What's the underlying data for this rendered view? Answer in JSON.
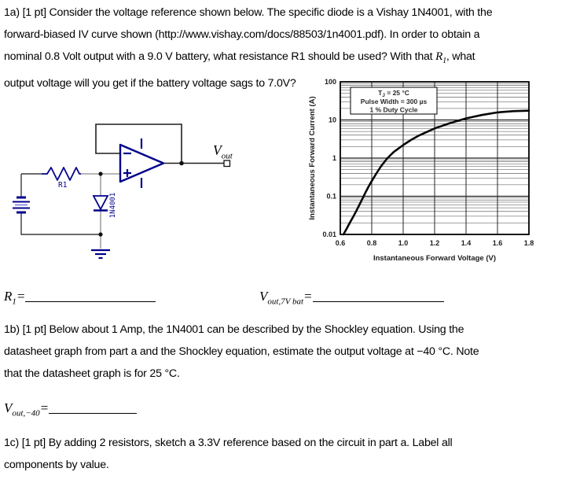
{
  "q1a": {
    "line1": "1a) [1 pt] Consider the voltage reference shown below. The specific diode is a Vishay 1N4001, with the",
    "line2": "forward-biased IV curve shown (http://www.vishay.com/docs/88503/1n4001.pdf). In order to obtain a",
    "line3_pre": "nominal 0.8 Volt output with a 9.0 V battery, what resistance R1 should be used? With that ",
    "line3_var": "R",
    "line3_sub": "1",
    "line3_post": ", what",
    "line4": "output voltage will you get if the battery voltage sags to 7.0V?"
  },
  "circuit": {
    "r1_label": "R1",
    "diode_label": "1N4001",
    "vout_var": "V",
    "vout_sub": "out",
    "component_color": "#00008b",
    "wire_color": "#8a8a8a",
    "dark_wire_color": "#1f1f1f"
  },
  "chart_data": {
    "type": "line",
    "title": "",
    "xlabel": "Instantaneous Forward Voltage (V)",
    "ylabel": "Instantaneous Forward Current (A)",
    "xlim": [
      0.6,
      1.8
    ],
    "xticks": [
      0.6,
      0.8,
      1.0,
      1.2,
      1.4,
      1.6,
      1.8
    ],
    "xtick_labels": [
      "0.6",
      "0.8",
      "1.0",
      "1.2",
      "1.4",
      "1.6",
      "1.8"
    ],
    "yscale": "log",
    "ylim": [
      0.01,
      100
    ],
    "ytick_values": [
      0.01,
      0.1,
      1,
      10,
      100
    ],
    "ytick_labels": [
      "0.01",
      "0.1",
      "1",
      "10",
      "100"
    ],
    "grid": true,
    "legend_position": "top-left-inside",
    "legend": {
      "line1_pre": "T",
      "line1_sub": "J",
      "line1_post": " = 25 °C",
      "line2": "Pulse Width = 300 µs",
      "line3": "1 % Duty Cycle"
    },
    "series": [
      {
        "name": "1N4001 instantaneous forward IV curve, 25 °C",
        "x": [
          0.62,
          0.64,
          0.66,
          0.68,
          0.7,
          0.72,
          0.74,
          0.76,
          0.78,
          0.8,
          0.83,
          0.86,
          0.9,
          0.94,
          1.0,
          1.05,
          1.1,
          1.2,
          1.3,
          1.4,
          1.5,
          1.6,
          1.7,
          1.8
        ],
        "y": [
          0.01,
          0.014,
          0.02,
          0.028,
          0.04,
          0.058,
          0.085,
          0.125,
          0.18,
          0.25,
          0.4,
          0.62,
          1.0,
          1.45,
          2.2,
          3.0,
          3.9,
          6.0,
          8.3,
          11.0,
          13.5,
          15.8,
          17.0,
          17.5
        ]
      }
    ]
  },
  "answers": {
    "r1": {
      "var": "R",
      "sub": "1",
      "eq": "="
    },
    "vout7": {
      "var": "V",
      "sub": "out,7V bat",
      "eq": "="
    },
    "vout40": {
      "var": "V",
      "sub": "out,−40",
      "eq": "="
    }
  },
  "q1b": {
    "line1": "1b) [1 pt] Below about 1 Amp, the 1N4001 can be described by the Shockley equation. Using the",
    "line2": "datasheet graph from part a and the Shockley equation, estimate the output voltage at −40 °C. Note",
    "line3": "that the datasheet graph is for 25 °C."
  },
  "q1c": {
    "line1": "1c) [1 pt] By adding 2 resistors, sketch a 3.3V reference based on the circuit in part a. Label all",
    "line2": "components by value."
  }
}
